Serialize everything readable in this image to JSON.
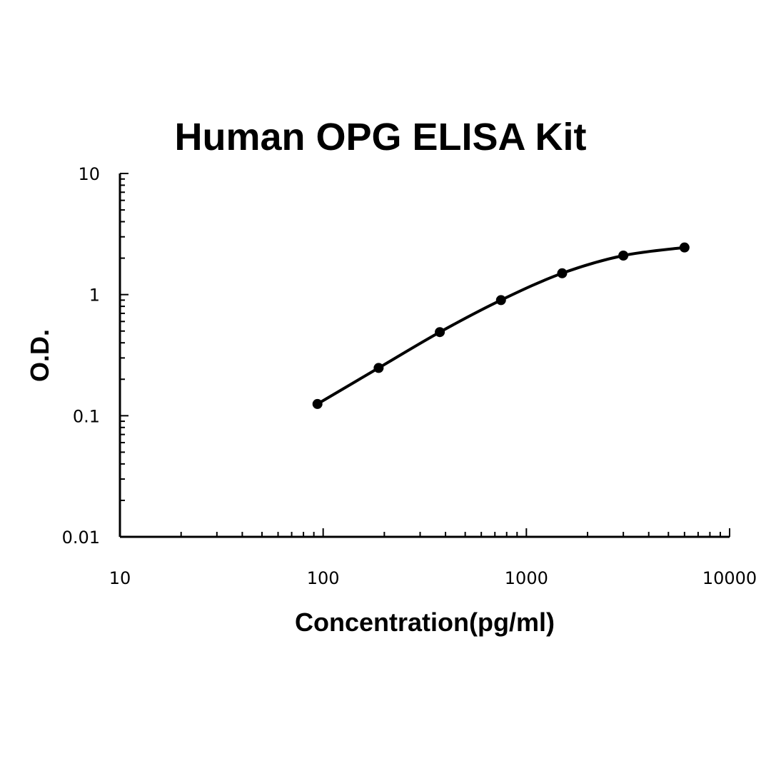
{
  "chart_data": {
    "type": "line",
    "title": "Human OPG ELISA Kit",
    "xlabel": "Concentration(pg/ml)",
    "ylabel": "O.D.",
    "x_scale": "log",
    "y_scale": "log",
    "xlim": [
      10,
      10000
    ],
    "ylim": [
      0.01,
      10
    ],
    "x_ticks": [
      10,
      100,
      1000,
      10000
    ],
    "x_tick_labels": [
      "10",
      "100",
      "1000",
      "10000"
    ],
    "y_ticks": [
      0.01,
      0.1,
      1,
      10
    ],
    "y_tick_labels": [
      "0.01",
      "0.1",
      "1",
      "10"
    ],
    "grid": false,
    "legend": "none",
    "series": [
      {
        "x": [
          93.75,
          187.5,
          375,
          750,
          1500,
          3000,
          6000
        ],
        "y": [
          0.125,
          0.248,
          0.49,
          0.9,
          1.5,
          2.1,
          2.45
        ],
        "color": "#000000",
        "marker": "circle"
      }
    ]
  }
}
